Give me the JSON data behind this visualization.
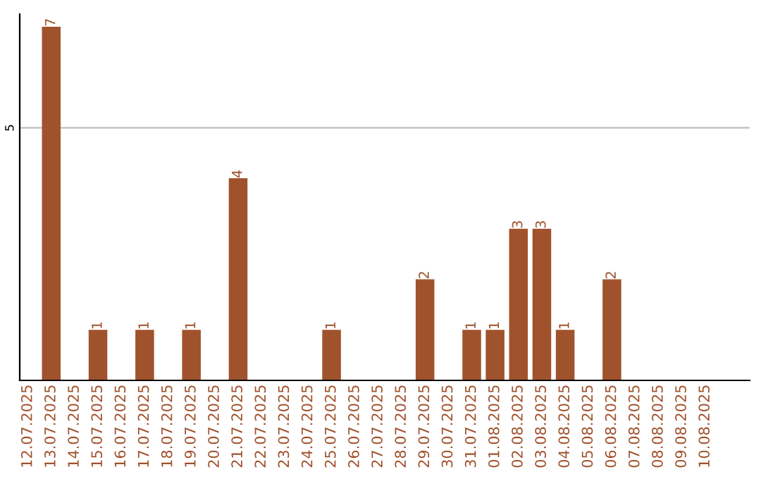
{
  "chart_data": {
    "type": "bar",
    "categories": [
      "12.07.2025",
      "13.07.2025",
      "14.07.2025",
      "15.07.2025",
      "16.07.2025",
      "17.07.2025",
      "18.07.2025",
      "19.07.2025",
      "20.07.2025",
      "21.07.2025",
      "22.07.2025",
      "23.07.2025",
      "24.07.2025",
      "25.07.2025",
      "26.07.2025",
      "27.07.2025",
      "28.07.2025",
      "29.07.2025",
      "30.07.2025",
      "31.07.2025",
      "01.08.2025",
      "02.08.2025",
      "03.08.2025",
      "04.08.2025",
      "05.08.2025",
      "06.08.2025",
      "07.08.2025",
      "08.08.2025",
      "09.08.2025",
      "10.08.2025"
    ],
    "values": [
      0,
      7,
      0,
      1,
      0,
      1,
      0,
      1,
      0,
      4,
      0,
      0,
      0,
      1,
      0,
      0,
      0,
      2,
      0,
      1,
      1,
      3,
      3,
      1,
      0,
      2,
      0,
      0,
      0,
      0
    ],
    "value_labels": [
      null,
      "7",
      null,
      "1",
      null,
      "1",
      null,
      "1",
      null,
      "4",
      null,
      null,
      null,
      "1",
      null,
      null,
      null,
      "2",
      null,
      "1",
      "1",
      "3",
      "3",
      "1",
      null,
      "2",
      null,
      null,
      null,
      null
    ],
    "color": "#a0522d",
    "ylim": [
      0,
      7.25
    ],
    "ref_lines": [
      {
        "axis": "y",
        "value": 5,
        "label": "5",
        "color": "#c8c8c8"
      }
    ]
  }
}
